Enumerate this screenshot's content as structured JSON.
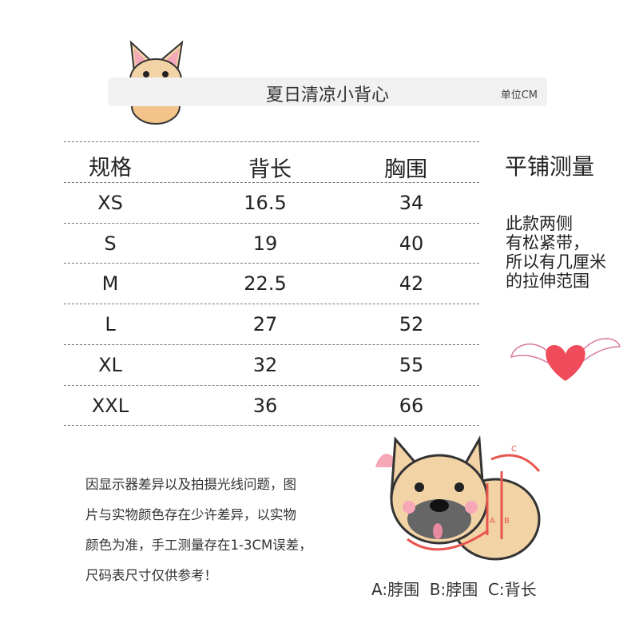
{
  "header": {
    "title": "夏日清凉小背心",
    "unit": "单位CM"
  },
  "table": {
    "columns": [
      "规格",
      "背长",
      "胸围"
    ],
    "rows": [
      [
        "XS",
        "16.5",
        "34"
      ],
      [
        "S",
        "19",
        "40"
      ],
      [
        "M",
        "22.5",
        "42"
      ],
      [
        "L",
        "27",
        "52"
      ],
      [
        "XL",
        "32",
        "55"
      ],
      [
        "XXL",
        "36",
        "66"
      ]
    ]
  },
  "side": {
    "method": "平铺测量",
    "note_lines": [
      "此款两侧",
      "有松紧带，",
      "所以有几厘米",
      "的拉伸范围"
    ]
  },
  "disclaimer_lines": [
    "因显示器差异以及拍摄光线问题，图",
    "片与实物颜色存在少许差异，以实物",
    "颜色为准，手工测量存在1-3CM误差，",
    "尺码表尺寸仅供参考！"
  ],
  "diagram": {
    "caption": "A:脖围  B:脖围  C:背长",
    "labels": [
      "A",
      "B",
      "C"
    ]
  },
  "colors": {
    "accent": "#e8544e",
    "dog": "#f2d3a6",
    "heart": "#ef4b5a",
    "title_bar": "#f1f1f1"
  }
}
